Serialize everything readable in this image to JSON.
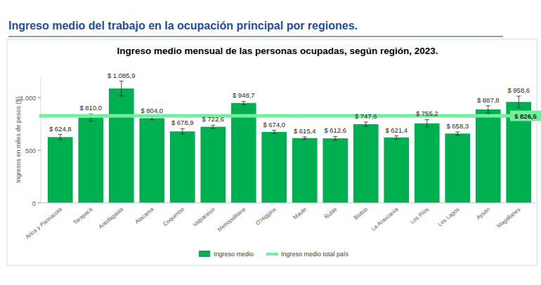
{
  "header": {
    "title": "Ingreso medio del trabajo en la ocupación principal por regiones."
  },
  "chart_data": {
    "type": "bar",
    "title": "Ingreso medio mensual de las personas ocupadas, según región, 2023.",
    "y_label": "Ingresos en miles de pesos ($)",
    "categories": [
      "Arica y Parinacota",
      "Tarapacá",
      "Antofagasta",
      "Atacama",
      "Coquimbo",
      "Valparaíso",
      "Metropolitana",
      "O'Higgins",
      "Maule",
      "Ñuble",
      "Biobío",
      "La Araucanía",
      "Los Ríos",
      "Los Lagos",
      "Aysén",
      "Magallanes"
    ],
    "series": [
      {
        "name": "Ingreso medio",
        "color": "#00b050",
        "values": [
          624.8,
          810.0,
          1085.9,
          804.0,
          678.9,
          722.6,
          948.7,
          674.0,
          615.4,
          612.6,
          747.6,
          621.4,
          755.2,
          658.3,
          887.8,
          958.6
        ],
        "value_labels": [
          "$ 624,8",
          "$ 810,0",
          "$ 1.085,9",
          "$ 804,0",
          "$ 678,9",
          "$ 722,6",
          "$ 948,7",
          "$ 674,0",
          "$ 615,4",
          "$ 612,6",
          "$ 747,6",
          "$ 621,4",
          "$ 755,2",
          "$ 658,3",
          "$ 887,8",
          "$ 958,6"
        ],
        "errors": [
          25,
          35,
          70,
          15,
          25,
          15,
          15,
          15,
          12,
          18,
          20,
          15,
          35,
          15,
          35,
          55
        ]
      }
    ],
    "reference_line": {
      "name": "Ingreso medio total país",
      "color": "#70f09a",
      "value": 826.5,
      "label": "$ 826,5"
    },
    "ylim": [
      0,
      1200
    ],
    "yticks": [
      0,
      500,
      {
        "value": 1000,
        "label": "1.000"
      }
    ],
    "data_labels": true,
    "grid": false,
    "legend": "bottom"
  }
}
